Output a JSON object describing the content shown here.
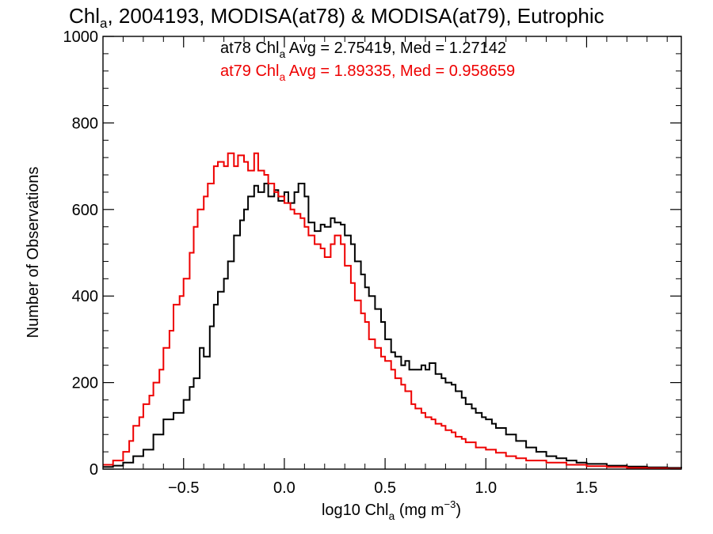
{
  "chart_data": {
    "type": "line",
    "title": {
      "prefix": "Chl",
      "sub": "a",
      "rest": ", 2004193, MODISA(at78) & MODISA(at79), Eutrophic"
    },
    "xlabel": {
      "pre": "log10 Chl",
      "sub": "a",
      "mid": " (mg m",
      "sup": "−3",
      "post": ")"
    },
    "ylabel": "Number of Observations",
    "xlim": [
      -0.9,
      1.97
    ],
    "ylim": [
      0,
      1000
    ],
    "x_ticks": [
      -0.5,
      0.0,
      0.5,
      1.0,
      1.5
    ],
    "x_tick_labels": [
      "−0.5",
      "0.0",
      "0.5",
      "1.0",
      "1.5"
    ],
    "y_ticks": [
      0,
      200,
      400,
      600,
      800,
      1000
    ],
    "y_tick_labels": [
      "0",
      "200",
      "400",
      "600",
      "800",
      "1000"
    ],
    "grid": false,
    "legend_position": "top-center",
    "series": [
      {
        "name": "at78",
        "color": "#000000",
        "stat_label": {
          "pre": "at78 Chl",
          "sub": "a",
          "post": " Avg = 2.75419, Med = 1.27142"
        },
        "points": [
          [
            -0.9,
            5
          ],
          [
            -0.85,
            8
          ],
          [
            -0.8,
            15
          ],
          [
            -0.75,
            30
          ],
          [
            -0.7,
            45
          ],
          [
            -0.65,
            80
          ],
          [
            -0.6,
            115
          ],
          [
            -0.55,
            130
          ],
          [
            -0.5,
            160
          ],
          [
            -0.47,
            190
          ],
          [
            -0.45,
            210
          ],
          [
            -0.42,
            280
          ],
          [
            -0.4,
            260
          ],
          [
            -0.37,
            330
          ],
          [
            -0.35,
            380
          ],
          [
            -0.33,
            410
          ],
          [
            -0.3,
            440
          ],
          [
            -0.28,
            480
          ],
          [
            -0.25,
            540
          ],
          [
            -0.22,
            575
          ],
          [
            -0.2,
            600
          ],
          [
            -0.18,
            630
          ],
          [
            -0.15,
            655
          ],
          [
            -0.13,
            640
          ],
          [
            -0.1,
            660
          ],
          [
            -0.08,
            630
          ],
          [
            -0.05,
            645
          ],
          [
            -0.03,
            620
          ],
          [
            0.0,
            640
          ],
          [
            0.02,
            615
          ],
          [
            0.05,
            640
          ],
          [
            0.07,
            660
          ],
          [
            0.1,
            630
          ],
          [
            0.12,
            570
          ],
          [
            0.15,
            550
          ],
          [
            0.18,
            565
          ],
          [
            0.2,
            560
          ],
          [
            0.23,
            580
          ],
          [
            0.25,
            570
          ],
          [
            0.28,
            565
          ],
          [
            0.3,
            540
          ],
          [
            0.33,
            520
          ],
          [
            0.35,
            480
          ],
          [
            0.38,
            450
          ],
          [
            0.4,
            420
          ],
          [
            0.42,
            400
          ],
          [
            0.45,
            370
          ],
          [
            0.48,
            340
          ],
          [
            0.5,
            300
          ],
          [
            0.53,
            270
          ],
          [
            0.55,
            260
          ],
          [
            0.58,
            240
          ],
          [
            0.6,
            250
          ],
          [
            0.62,
            230
          ],
          [
            0.65,
            230
          ],
          [
            0.68,
            240
          ],
          [
            0.7,
            230
          ],
          [
            0.72,
            245
          ],
          [
            0.75,
            220
          ],
          [
            0.78,
            210
          ],
          [
            0.8,
            200
          ],
          [
            0.83,
            195
          ],
          [
            0.85,
            180
          ],
          [
            0.88,
            165
          ],
          [
            0.9,
            150
          ],
          [
            0.93,
            140
          ],
          [
            0.95,
            130
          ],
          [
            0.98,
            120
          ],
          [
            1.0,
            115
          ],
          [
            1.03,
            105
          ],
          [
            1.05,
            95
          ],
          [
            1.1,
            80
          ],
          [
            1.15,
            65
          ],
          [
            1.2,
            50
          ],
          [
            1.25,
            40
          ],
          [
            1.3,
            30
          ],
          [
            1.35,
            25
          ],
          [
            1.4,
            20
          ],
          [
            1.45,
            15
          ],
          [
            1.5,
            12
          ],
          [
            1.6,
            8
          ],
          [
            1.7,
            6
          ],
          [
            1.8,
            4
          ],
          [
            1.9,
            3
          ],
          [
            1.97,
            2
          ]
        ]
      },
      {
        "name": "at79",
        "color": "#ee0000",
        "stat_label": {
          "pre": "at79 Chl",
          "sub": "a",
          "post": " Avg = 1.89335, Med = 0.958659"
        },
        "points": [
          [
            -0.9,
            10
          ],
          [
            -0.85,
            20
          ],
          [
            -0.8,
            40
          ],
          [
            -0.77,
            65
          ],
          [
            -0.75,
            100
          ],
          [
            -0.72,
            120
          ],
          [
            -0.7,
            150
          ],
          [
            -0.67,
            170
          ],
          [
            -0.65,
            200
          ],
          [
            -0.62,
            230
          ],
          [
            -0.6,
            280
          ],
          [
            -0.57,
            320
          ],
          [
            -0.55,
            380
          ],
          [
            -0.52,
            400
          ],
          [
            -0.5,
            440
          ],
          [
            -0.47,
            500
          ],
          [
            -0.45,
            560
          ],
          [
            -0.43,
            600
          ],
          [
            -0.4,
            630
          ],
          [
            -0.38,
            660
          ],
          [
            -0.35,
            700
          ],
          [
            -0.33,
            710
          ],
          [
            -0.3,
            700
          ],
          [
            -0.28,
            730
          ],
          [
            -0.25,
            700
          ],
          [
            -0.23,
            725
          ],
          [
            -0.2,
            710
          ],
          [
            -0.18,
            690
          ],
          [
            -0.15,
            730
          ],
          [
            -0.13,
            690
          ],
          [
            -0.1,
            680
          ],
          [
            -0.08,
            660
          ],
          [
            -0.05,
            640
          ],
          [
            -0.03,
            630
          ],
          [
            0.0,
            615
          ],
          [
            0.03,
            600
          ],
          [
            0.05,
            590
          ],
          [
            0.08,
            580
          ],
          [
            0.1,
            560
          ],
          [
            0.12,
            540
          ],
          [
            0.15,
            520
          ],
          [
            0.18,
            510
          ],
          [
            0.2,
            490
          ],
          [
            0.23,
            520
          ],
          [
            0.25,
            540
          ],
          [
            0.28,
            520
          ],
          [
            0.3,
            470
          ],
          [
            0.33,
            430
          ],
          [
            0.35,
            390
          ],
          [
            0.38,
            360
          ],
          [
            0.4,
            340
          ],
          [
            0.42,
            300
          ],
          [
            0.45,
            280
          ],
          [
            0.48,
            260
          ],
          [
            0.5,
            250
          ],
          [
            0.53,
            230
          ],
          [
            0.55,
            210
          ],
          [
            0.58,
            195
          ],
          [
            0.6,
            180
          ],
          [
            0.63,
            150
          ],
          [
            0.65,
            140
          ],
          [
            0.68,
            130
          ],
          [
            0.7,
            120
          ],
          [
            0.73,
            115
          ],
          [
            0.75,
            105
          ],
          [
            0.78,
            100
          ],
          [
            0.8,
            90
          ],
          [
            0.83,
            85
          ],
          [
            0.85,
            75
          ],
          [
            0.88,
            70
          ],
          [
            0.9,
            62
          ],
          [
            0.95,
            50
          ],
          [
            1.0,
            45
          ],
          [
            1.05,
            38
          ],
          [
            1.1,
            30
          ],
          [
            1.15,
            25
          ],
          [
            1.2,
            20
          ],
          [
            1.3,
            15
          ],
          [
            1.4,
            10
          ],
          [
            1.5,
            7
          ],
          [
            1.6,
            5
          ],
          [
            1.7,
            3
          ],
          [
            1.8,
            2
          ],
          [
            1.9,
            1
          ],
          [
            1.97,
            1
          ]
        ]
      }
    ]
  }
}
